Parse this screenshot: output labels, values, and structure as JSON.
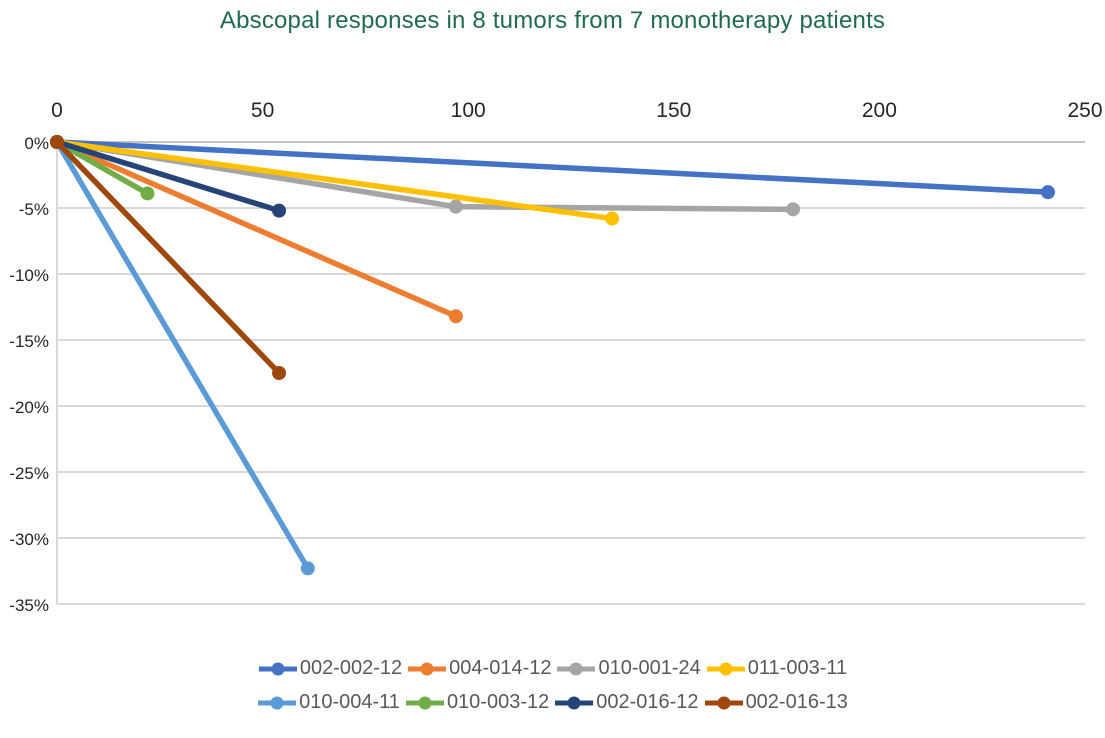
{
  "chart_data": {
    "type": "line",
    "title": "Abscopal responses in 8 tumors from 7 monotherapy patients",
    "xlabel": "",
    "ylabel": "",
    "x_axis": {
      "min": 0,
      "max": 250,
      "position": "top",
      "ticks": [
        0,
        50,
        100,
        150,
        200,
        250
      ],
      "tick_labels": [
        "0",
        "50",
        "100",
        "150",
        "200",
        "250"
      ]
    },
    "y_axis": {
      "min": -35,
      "max": 0,
      "ticks": [
        0,
        -5,
        -10,
        -15,
        -20,
        -25,
        -30,
        -35
      ],
      "tick_labels": [
        "0%",
        "-5%",
        "-10%",
        "-15%",
        "-20%",
        "-25%",
        "-30%",
        "-35%"
      ]
    },
    "grid": true,
    "legend_position": "bottom",
    "legend_rows": 2,
    "series": [
      {
        "name": "002-002-12",
        "color": "#4472C4",
        "points": [
          [
            0,
            0
          ],
          [
            241,
            -3.8
          ]
        ]
      },
      {
        "name": "004-014-12",
        "color": "#ED7D31",
        "points": [
          [
            0,
            0
          ],
          [
            97,
            -13.2
          ]
        ]
      },
      {
        "name": "010-001-24",
        "color": "#A5A5A5",
        "points": [
          [
            0,
            0
          ],
          [
            97,
            -4.9
          ],
          [
            179,
            -5.1
          ]
        ]
      },
      {
        "name": "011-003-11",
        "color": "#FFC000",
        "points": [
          [
            0,
            0
          ],
          [
            135,
            -5.8
          ]
        ]
      },
      {
        "name": "010-004-11",
        "color": "#5B9BD5",
        "points": [
          [
            0,
            0
          ],
          [
            61,
            -32.3
          ]
        ]
      },
      {
        "name": "010-003-12",
        "color": "#70AD47",
        "points": [
          [
            0,
            0
          ],
          [
            22,
            -3.9
          ]
        ]
      },
      {
        "name": "002-016-12",
        "color": "#264478",
        "points": [
          [
            0,
            0
          ],
          [
            54,
            -5.2
          ]
        ]
      },
      {
        "name": "002-016-13",
        "color": "#9E480E",
        "points": [
          [
            0,
            0
          ],
          [
            54,
            -17.5
          ]
        ]
      }
    ],
    "colors": {
      "title": "#206B4E",
      "axis_labels": "#262626",
      "legend_text": "#595959",
      "gridline": "#D9D9D9",
      "axis_line": "#C3C3C3",
      "background": "#FFFFFF"
    }
  }
}
